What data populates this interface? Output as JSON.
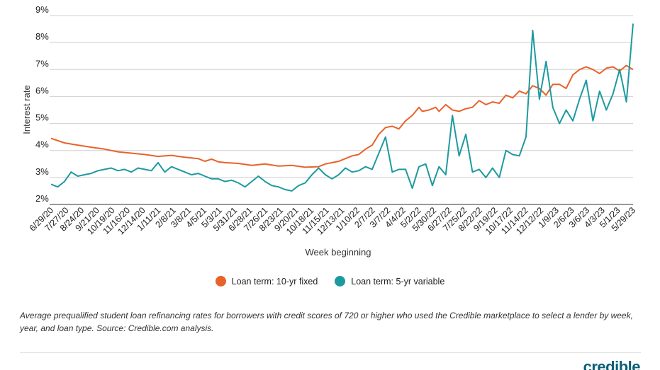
{
  "chart_data": {
    "type": "line",
    "title": "",
    "xlabel": "Week beginning",
    "ylabel": "Interest rate",
    "ylim": [
      2,
      9
    ],
    "y_ticks": [
      "2%",
      "3%",
      "4%",
      "5%",
      "6%",
      "7%",
      "8%",
      "9%"
    ],
    "x_tick_labels": [
      "6/29/20",
      "7/27/20",
      "8/24/20",
      "9/21/20",
      "10/19/20",
      "11/16/20",
      "12/14/20",
      "1/11/21",
      "2/8/21",
      "3/8/21",
      "4/5/21",
      "5/3/21",
      "5/31/21",
      "6/28/21",
      "7/26/21",
      "8/23/21",
      "9/20/21",
      "10/18/21",
      "11/15/21",
      "12/13/21",
      "1/10/22",
      "2/7/22",
      "3/7/22",
      "4/4/22",
      "5/2/22",
      "5/30/22",
      "6/27/22",
      "7/25/22",
      "8/22/22",
      "9/19/22",
      "10/17/22",
      "11/14/22",
      "12/12/22",
      "1/9/23",
      "2/6/23",
      "3/6/23",
      "4/3/23",
      "5/1/23",
      "5/29/23"
    ],
    "grid": "horizontal",
    "legend_position": "bottom",
    "series": [
      {
        "name": "Loan term: 10-yr fixed",
        "color": "#e8622a",
        "points": [
          [
            0,
            4.45
          ],
          [
            4,
            4.28
          ],
          [
            8,
            4.2
          ],
          [
            12,
            4.12
          ],
          [
            16,
            4.05
          ],
          [
            20,
            3.95
          ],
          [
            24,
            3.9
          ],
          [
            28,
            3.85
          ],
          [
            32,
            3.78
          ],
          [
            36,
            3.82
          ],
          [
            40,
            3.75
          ],
          [
            44,
            3.7
          ],
          [
            46,
            3.6
          ],
          [
            48,
            3.68
          ],
          [
            50,
            3.58
          ],
          [
            52,
            3.55
          ],
          [
            56,
            3.52
          ],
          [
            60,
            3.45
          ],
          [
            64,
            3.5
          ],
          [
            68,
            3.42
          ],
          [
            72,
            3.45
          ],
          [
            76,
            3.38
          ],
          [
            80,
            3.4
          ],
          [
            82,
            3.5
          ],
          [
            84,
            3.55
          ],
          [
            86,
            3.6
          ],
          [
            88,
            3.7
          ],
          [
            90,
            3.8
          ],
          [
            92,
            3.85
          ],
          [
            94,
            4.05
          ],
          [
            96,
            4.2
          ],
          [
            98,
            4.6
          ],
          [
            100,
            4.85
          ],
          [
            102,
            4.9
          ],
          [
            104,
            4.8
          ],
          [
            106,
            5.1
          ],
          [
            108,
            5.3
          ],
          [
            110,
            5.6
          ],
          [
            111,
            5.45
          ],
          [
            113,
            5.5
          ],
          [
            115,
            5.6
          ],
          [
            116,
            5.45
          ],
          [
            118,
            5.7
          ],
          [
            120,
            5.5
          ],
          [
            122,
            5.45
          ],
          [
            124,
            5.55
          ],
          [
            126,
            5.6
          ],
          [
            128,
            5.85
          ],
          [
            130,
            5.7
          ],
          [
            132,
            5.8
          ],
          [
            134,
            5.75
          ],
          [
            136,
            6.05
          ],
          [
            138,
            5.95
          ],
          [
            140,
            6.2
          ],
          [
            142,
            6.1
          ],
          [
            144,
            6.4
          ],
          [
            146,
            6.3
          ],
          [
            148,
            6.05
          ],
          [
            150,
            6.45
          ],
          [
            152,
            6.45
          ],
          [
            154,
            6.3
          ],
          [
            156,
            6.8
          ],
          [
            158,
            7.0
          ],
          [
            160,
            7.1
          ],
          [
            162,
            7.0
          ],
          [
            164,
            6.85
          ],
          [
            166,
            7.05
          ],
          [
            168,
            7.1
          ],
          [
            170,
            6.95
          ],
          [
            172,
            7.15
          ],
          [
            174,
            7.0
          ]
        ]
      },
      {
        "name": "Loan term: 5-yr variable",
        "color": "#1d9aa0",
        "points": [
          [
            0,
            2.75
          ],
          [
            2,
            2.65
          ],
          [
            4,
            2.85
          ],
          [
            6,
            3.2
          ],
          [
            8,
            3.05
          ],
          [
            10,
            3.1
          ],
          [
            12,
            3.15
          ],
          [
            14,
            3.25
          ],
          [
            16,
            3.3
          ],
          [
            18,
            3.35
          ],
          [
            20,
            3.25
          ],
          [
            22,
            3.3
          ],
          [
            24,
            3.2
          ],
          [
            26,
            3.35
          ],
          [
            28,
            3.3
          ],
          [
            30,
            3.25
          ],
          [
            32,
            3.55
          ],
          [
            34,
            3.2
          ],
          [
            36,
            3.4
          ],
          [
            38,
            3.3
          ],
          [
            40,
            3.2
          ],
          [
            42,
            3.1
          ],
          [
            44,
            3.15
          ],
          [
            46,
            3.05
          ],
          [
            48,
            2.95
          ],
          [
            50,
            2.95
          ],
          [
            52,
            2.85
          ],
          [
            54,
            2.9
          ],
          [
            56,
            2.8
          ],
          [
            58,
            2.65
          ],
          [
            60,
            2.85
          ],
          [
            62,
            3.05
          ],
          [
            64,
            2.85
          ],
          [
            66,
            2.7
          ],
          [
            68,
            2.65
          ],
          [
            70,
            2.55
          ],
          [
            72,
            2.5
          ],
          [
            74,
            2.7
          ],
          [
            76,
            2.8
          ],
          [
            78,
            3.1
          ],
          [
            80,
            3.35
          ],
          [
            82,
            3.1
          ],
          [
            84,
            2.95
          ],
          [
            86,
            3.1
          ],
          [
            88,
            3.35
          ],
          [
            90,
            3.2
          ],
          [
            92,
            3.25
          ],
          [
            94,
            3.4
          ],
          [
            96,
            3.3
          ],
          [
            98,
            3.9
          ],
          [
            100,
            4.5
          ],
          [
            102,
            3.2
          ],
          [
            104,
            3.3
          ],
          [
            106,
            3.3
          ],
          [
            108,
            2.6
          ],
          [
            110,
            3.4
          ],
          [
            112,
            3.5
          ],
          [
            114,
            2.7
          ],
          [
            116,
            3.4
          ],
          [
            118,
            3.1
          ],
          [
            120,
            5.3
          ],
          [
            122,
            3.8
          ],
          [
            124,
            4.6
          ],
          [
            126,
            3.2
          ],
          [
            128,
            3.3
          ],
          [
            130,
            3.0
          ],
          [
            132,
            3.35
          ],
          [
            134,
            3.0
          ],
          [
            136,
            4.0
          ],
          [
            138,
            3.85
          ],
          [
            140,
            3.8
          ],
          [
            142,
            4.5
          ],
          [
            144,
            8.45
          ],
          [
            146,
            5.9
          ],
          [
            148,
            7.3
          ],
          [
            150,
            5.6
          ],
          [
            152,
            5.0
          ],
          [
            154,
            5.5
          ],
          [
            156,
            5.1
          ],
          [
            158,
            5.9
          ],
          [
            160,
            6.6
          ],
          [
            162,
            5.1
          ],
          [
            164,
            6.2
          ],
          [
            166,
            5.5
          ],
          [
            168,
            6.1
          ],
          [
            170,
            7.0
          ],
          [
            172,
            5.8
          ],
          [
            174,
            8.7
          ]
        ]
      }
    ]
  },
  "legend": {
    "item1_label": "Loan term: 10-yr fixed",
    "item2_label": "Loan term: 5-yr variable"
  },
  "caption": "Average prequalified student loan refinancing rates for borrowers with credit scores of 720 or higher who used the Credible marketplace to select a lender by week, year, and loan type. Source: Credible.com analysis.",
  "logo_text": "credible"
}
